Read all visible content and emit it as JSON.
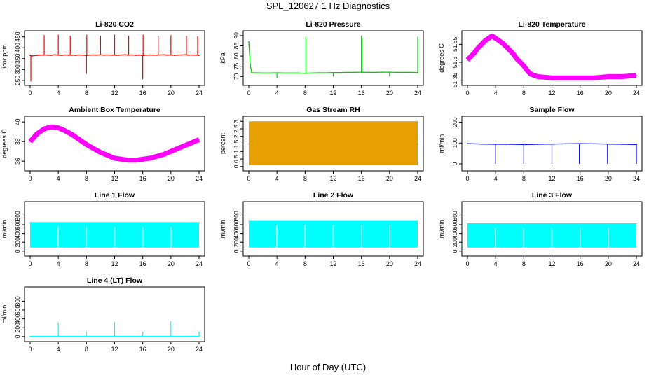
{
  "page": {
    "title": "SPL_120627  1 Hz Diagnostics",
    "xlabel": "Hour of Day (UTC)"
  },
  "chart_data": [
    {
      "type": "line",
      "title": "Li-820 CO2",
      "ylabel": "Licor ppm",
      "color": "#ff0000",
      "xlim": [
        0,
        24
      ],
      "ylim": [
        240,
        465
      ],
      "xticks": [
        0,
        4,
        8,
        12,
        16,
        20,
        24
      ],
      "yticks": [
        250,
        300,
        350,
        400,
        450
      ],
      "series": [
        {
          "x": [
            0,
            0.25,
            1,
            1.5,
            2,
            2.5,
            3,
            3.5,
            4,
            4.5,
            5,
            5.5,
            6,
            6.5,
            7,
            7.5,
            8,
            8.5,
            9,
            9.5,
            10,
            10.5,
            11,
            11.5,
            12,
            12.5,
            13,
            13.5,
            14,
            14.5,
            15,
            15.5,
            16,
            16.5,
            17,
            17.5,
            18,
            18.5,
            19,
            19.5,
            20,
            20.5,
            21,
            21.5,
            22,
            22.5,
            23,
            23.5,
            24
          ],
          "values": [
            365,
            362,
            365,
            366,
            367,
            366,
            365,
            368,
            366,
            365,
            367,
            366,
            366,
            365,
            367,
            366,
            364,
            366,
            367,
            366,
            368,
            366,
            367,
            366,
            366,
            365,
            367,
            368,
            366,
            367,
            365,
            366,
            364,
            366,
            367,
            366,
            366,
            367,
            368,
            366,
            367,
            365,
            366,
            367,
            368,
            366,
            367,
            366,
            365
          ]
        }
      ],
      "spikes": [
        [
          0.1,
          245
        ],
        [
          2.0,
          458
        ],
        [
          4.0,
          460
        ],
        [
          5.7,
          455
        ],
        [
          8.0,
          280
        ],
        [
          8.05,
          460
        ],
        [
          10.0,
          455
        ],
        [
          12.0,
          460
        ],
        [
          14.0,
          455
        ],
        [
          16.0,
          255
        ],
        [
          16.05,
          460
        ],
        [
          18.2,
          455
        ],
        [
          20.0,
          458
        ],
        [
          22.2,
          455
        ],
        [
          23.8,
          452
        ]
      ]
    },
    {
      "type": "line",
      "title": "Li-820 Pressure",
      "ylabel": "kPa",
      "color": "#00cc00",
      "xlim": [
        0,
        24
      ],
      "ylim": [
        67,
        91
      ],
      "xticks": [
        0,
        4,
        8,
        12,
        16,
        20,
        24
      ],
      "yticks": [
        70,
        75,
        80,
        85,
        90
      ],
      "series": [
        {
          "x": [
            0,
            0.2,
            0.4,
            1,
            2,
            3,
            4,
            5,
            6,
            7,
            8,
            9,
            10,
            11,
            12,
            13,
            14,
            15,
            16,
            17,
            18,
            19,
            20,
            21,
            22,
            23,
            24
          ],
          "values": [
            87,
            76,
            71.8,
            71.8,
            71.7,
            71.7,
            71.8,
            71.7,
            71.7,
            71.7,
            71.6,
            71.7,
            71.8,
            71.8,
            71.9,
            71.9,
            72,
            72,
            72.1,
            72,
            72,
            72.1,
            72.1,
            72,
            72,
            72,
            71.9
          ]
        }
      ],
      "spikes": [
        [
          4.0,
          69
        ],
        [
          8.1,
          89.5
        ],
        [
          12.0,
          70
        ],
        [
          16.0,
          90
        ],
        [
          16.1,
          89
        ],
        [
          20.0,
          70
        ],
        [
          24.0,
          89.5
        ]
      ]
    },
    {
      "type": "line",
      "title": "Li-820 Temperature",
      "ylabel": "degrees C",
      "color": "#ff00ff",
      "xlim": [
        0,
        24
      ],
      "ylim": [
        51.33,
        51.74
      ],
      "xticks": [
        0,
        4,
        8,
        12,
        16,
        20,
        24
      ],
      "yticks": [
        51.35,
        51.5,
        51.65
      ],
      "series": [
        {
          "x": [
            0,
            0.5,
            1,
            1.5,
            2,
            2.5,
            3,
            3.5,
            4,
            4.5,
            5,
            5.5,
            6,
            6.5,
            7,
            7.5,
            8,
            8.5,
            9,
            10,
            12,
            14,
            16,
            18,
            20,
            22,
            24
          ],
          "values": [
            51.52,
            51.55,
            51.58,
            51.62,
            51.65,
            51.68,
            51.7,
            51.72,
            51.7,
            51.68,
            51.66,
            51.63,
            51.6,
            51.57,
            51.53,
            51.5,
            51.47,
            51.43,
            51.4,
            51.38,
            51.37,
            51.37,
            51.37,
            51.37,
            51.38,
            51.38,
            51.39
          ]
        }
      ]
    },
    {
      "type": "line",
      "title": "Ambient Box Temperature",
      "ylabel": "degrees C",
      "color": "#ff00ff",
      "xlim": [
        0,
        24
      ],
      "ylim": [
        35.3,
        40.3
      ],
      "xticks": [
        0,
        4,
        8,
        12,
        16,
        20,
        24
      ],
      "yticks": [
        36,
        38,
        40
      ],
      "series": [
        {
          "x": [
            0,
            1,
            2,
            3,
            4,
            5,
            6,
            7,
            8,
            9,
            10,
            11,
            12,
            13,
            14,
            15,
            16,
            17,
            18,
            19,
            20,
            21,
            22,
            23,
            24
          ],
          "values": [
            38.0,
            38.8,
            39.3,
            39.5,
            39.4,
            39.1,
            38.7,
            38.2,
            37.7,
            37.3,
            36.9,
            36.6,
            36.3,
            36.2,
            36.1,
            36.1,
            36.2,
            36.3,
            36.5,
            36.7,
            37.0,
            37.3,
            37.6,
            37.9,
            38.2
          ]
        }
      ]
    },
    {
      "type": "line",
      "title": "Gas Stream RH",
      "ylabel": "percent",
      "color": "#e69f00",
      "xlim": [
        0,
        24
      ],
      "ylim": [
        -0.1,
        3.15
      ],
      "xticks": [
        0,
        4,
        8,
        12,
        16,
        20,
        24
      ],
      "yticks": [
        0,
        0.5,
        1,
        1.5,
        2,
        2.5,
        3
      ],
      "series": [
        {
          "x": [
            0,
            24
          ],
          "values": [
            1.5,
            1.5
          ],
          "band_low": 0.1,
          "band_high": 3.0
        }
      ]
    },
    {
      "type": "line",
      "title": "Sample Flow",
      "ylabel": "ml/min",
      "color": "#0000ff",
      "xlim": [
        0,
        24
      ],
      "ylim": [
        -20,
        215
      ],
      "xticks": [
        0,
        4,
        8,
        12,
        16,
        20,
        24
      ],
      "yticks": [
        0,
        100,
        200
      ],
      "series": [
        {
          "x": [
            0,
            2,
            4,
            6,
            8,
            10,
            12,
            14,
            16,
            18,
            20,
            22,
            24
          ],
          "values": [
            97,
            95,
            94,
            94,
            93,
            94,
            95,
            96,
            97,
            96,
            95,
            94,
            93
          ]
        }
      ],
      "dips": [
        4.0,
        8.0,
        12.0,
        15.9,
        19.9,
        24.0
      ]
    },
    {
      "type": "line",
      "title": "Line 1 Flow",
      "ylabel": "ml/min",
      "color": "#00ffff",
      "xlim": [
        0,
        24
      ],
      "ylim": [
        -50,
        1060
      ],
      "xticks": [
        0,
        4,
        8,
        12,
        16,
        20,
        24
      ],
      "yticks": [
        0,
        200,
        400,
        600,
        800
      ],
      "series": [
        {
          "x": [
            0,
            24
          ],
          "values": [
            650,
            650
          ],
          "band_low": 80,
          "band_high": 650
        }
      ],
      "dips": [
        4.0,
        8.0,
        12.0,
        16.0,
        20.0
      ]
    },
    {
      "type": "line",
      "title": "Line 2 Flow",
      "ylabel": "ml/min",
      "color": "#00ffff",
      "xlim": [
        0,
        24
      ],
      "ylim": [
        -50,
        1060
      ],
      "xticks": [
        0,
        4,
        8,
        12,
        16,
        20,
        24
      ],
      "yticks": [
        0,
        200,
        400,
        600,
        800
      ],
      "series": [
        {
          "x": [
            0,
            24
          ],
          "values": [
            690,
            690
          ],
          "band_low": 80,
          "band_high": 690
        }
      ],
      "dips": [
        4.0,
        8.0,
        12.0,
        16.0,
        20.0
      ]
    },
    {
      "type": "line",
      "title": "Line 3 Flow",
      "ylabel": "ml/min",
      "color": "#00ffff",
      "xlim": [
        0,
        24
      ],
      "ylim": [
        -50,
        1060
      ],
      "xticks": [
        0,
        4,
        8,
        12,
        16,
        20,
        24
      ],
      "yticks": [
        0,
        200,
        400,
        600,
        800
      ],
      "series": [
        {
          "x": [
            0,
            24
          ],
          "values": [
            620,
            620
          ],
          "band_low": 80,
          "band_high": 620
        }
      ],
      "dips": [
        4.0,
        8.0,
        12.0,
        16.0,
        20.0
      ]
    },
    {
      "type": "line",
      "title": "Line 4 (LT) Flow",
      "ylabel": "ml/min",
      "color": "#00ffff",
      "xlim": [
        0,
        24
      ],
      "ylim": [
        -50,
        1060
      ],
      "xticks": [
        0,
        4,
        8,
        12,
        16,
        20,
        24
      ],
      "yticks": [
        0,
        200,
        400,
        600,
        800
      ],
      "series": [
        {
          "x": [
            0,
            24
          ],
          "values": [
            5,
            5
          ]
        }
      ],
      "spikes": [
        [
          4.0,
          320
        ],
        [
          8.0,
          110
        ],
        [
          12.0,
          330
        ],
        [
          16.0,
          110
        ],
        [
          20.0,
          350
        ],
        [
          24.0,
          110
        ]
      ]
    }
  ]
}
